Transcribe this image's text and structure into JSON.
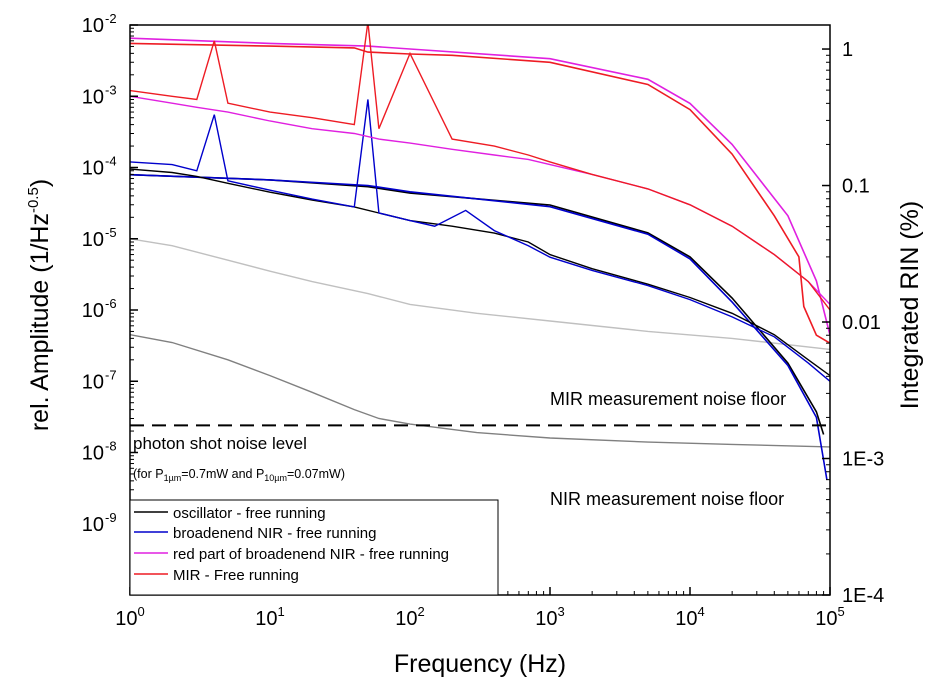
{
  "chart_data": {
    "type": "line",
    "xlabel": "Frequency (Hz)",
    "ylabel": "rel. Amplitude (1/Hz^-0.5)",
    "ylabel_parts": {
      "main": "rel. Amplitude (1/Hz",
      "sup": "-0.5",
      "tail": ")"
    },
    "y2label": "Integrated RIN (%)",
    "x_scale": "log",
    "y_scale": "log",
    "xlim": [
      1,
      100000
    ],
    "ylim": [
      1e-10,
      0.01
    ],
    "y2lim": [
      0.0001,
      1.5
    ],
    "x_ticks": [
      {
        "value": 1,
        "base": "10",
        "exp": "0"
      },
      {
        "value": 10,
        "base": "10",
        "exp": "1"
      },
      {
        "value": 100,
        "base": "10",
        "exp": "2"
      },
      {
        "value": 1000,
        "base": "10",
        "exp": "3"
      },
      {
        "value": 10000,
        "base": "10",
        "exp": "4"
      },
      {
        "value": 100000,
        "base": "10",
        "exp": "5"
      }
    ],
    "y_ticks": [
      {
        "value": 0.01,
        "base": "10",
        "exp": "-2"
      },
      {
        "value": 0.001,
        "base": "10",
        "exp": "-3"
      },
      {
        "value": 0.0001,
        "base": "10",
        "exp": "-4"
      },
      {
        "value": 1e-05,
        "base": "10",
        "exp": "-5"
      },
      {
        "value": 1e-06,
        "base": "10",
        "exp": "-6"
      },
      {
        "value": 1e-07,
        "base": "10",
        "exp": "-7"
      },
      {
        "value": 1e-08,
        "base": "10",
        "exp": "-8"
      },
      {
        "value": 1e-09,
        "base": "10",
        "exp": "-9"
      }
    ],
    "y2_ticks": [
      {
        "value": 1,
        "label": "1"
      },
      {
        "value": 0.1,
        "label": "0.1"
      },
      {
        "value": 0.01,
        "label": "0.01"
      },
      {
        "value": 0.001,
        "label": "1E-3"
      },
      {
        "value": 0.0001,
        "label": "1E-4"
      }
    ],
    "series": [
      {
        "name": "oscillator - free running",
        "color": "#000000",
        "spectrum": [
          [
            1,
            9.5e-05
          ],
          [
            2,
            8.5e-05
          ],
          [
            3,
            7.5e-05
          ],
          [
            5,
            6e-05
          ],
          [
            10,
            4.5e-05
          ],
          [
            20,
            3.5e-05
          ],
          [
            40,
            2.8e-05
          ],
          [
            60,
            2.3e-05
          ],
          [
            100,
            1.8e-05
          ],
          [
            200,
            1.5e-05
          ],
          [
            400,
            1.2e-05
          ],
          [
            700,
            9e-06
          ],
          [
            1000,
            6e-06
          ],
          [
            2000,
            3.8e-06
          ],
          [
            5000,
            2.3e-06
          ],
          [
            10000,
            1.5e-06
          ],
          [
            20000,
            9e-07
          ],
          [
            40000,
            4.5e-07
          ],
          [
            70000,
            2e-07
          ],
          [
            100000,
            1.2e-07
          ]
        ],
        "integrated": [
          [
            1,
            0.12
          ],
          [
            10,
            0.11
          ],
          [
            50,
            0.098
          ],
          [
            100,
            0.088
          ],
          [
            1000,
            0.072
          ],
          [
            5000,
            0.045
          ],
          [
            10000,
            0.03
          ],
          [
            20000,
            0.015
          ],
          [
            50000,
            0.005
          ],
          [
            80000,
            0.0022
          ],
          [
            90000,
            0.0015
          ]
        ]
      },
      {
        "name": "broadenend NIR - free running",
        "color": "#0000cc",
        "spectrum": [
          [
            1,
            0.00012
          ],
          [
            2,
            0.00011
          ],
          [
            3,
            9e-05
          ],
          [
            4,
            0.00055
          ],
          [
            5,
            6.5e-05
          ],
          [
            10,
            4.8e-05
          ],
          [
            20,
            3.6e-05
          ],
          [
            40,
            2.8e-05
          ],
          [
            50,
            0.0009
          ],
          [
            60,
            2.3e-05
          ],
          [
            100,
            1.8e-05
          ],
          [
            150,
            1.5e-05
          ],
          [
            250,
            2.5e-05
          ],
          [
            400,
            1.3e-05
          ],
          [
            700,
            8e-06
          ],
          [
            1000,
            5.5e-06
          ],
          [
            2000,
            3.6e-06
          ],
          [
            5000,
            2.2e-06
          ],
          [
            10000,
            1.4e-06
          ],
          [
            20000,
            8e-07
          ],
          [
            40000,
            4.2e-07
          ],
          [
            70000,
            1.8e-07
          ],
          [
            100000,
            1e-07
          ]
        ],
        "integrated": [
          [
            1,
            0.12
          ],
          [
            10,
            0.11
          ],
          [
            50,
            0.1
          ],
          [
            100,
            0.09
          ],
          [
            1000,
            0.07
          ],
          [
            5000,
            0.044
          ],
          [
            10000,
            0.029
          ],
          [
            20000,
            0.014
          ],
          [
            50000,
            0.0048
          ],
          [
            80000,
            0.002
          ],
          [
            95000,
            0.0007
          ]
        ]
      },
      {
        "name": "red part of broadenend NIR - free running",
        "color": "#e020e0",
        "spectrum": [
          [
            1,
            0.001
          ],
          [
            2,
            0.0008
          ],
          [
            3,
            0.0007
          ],
          [
            5,
            0.0006
          ],
          [
            10,
            0.00045
          ],
          [
            20,
            0.00035
          ],
          [
            40,
            0.0003
          ],
          [
            60,
            0.00025
          ],
          [
            100,
            0.00022
          ],
          [
            200,
            0.00018
          ],
          [
            400,
            0.00015
          ],
          [
            700,
            0.00013
          ],
          [
            1000,
            0.00011
          ],
          [
            2000,
            8e-05
          ],
          [
            5000,
            5e-05
          ],
          [
            10000,
            3e-05
          ],
          [
            20000,
            1.5e-05
          ],
          [
            40000,
            6e-06
          ],
          [
            70000,
            2.5e-06
          ],
          [
            100000,
            1.2e-06
          ]
        ],
        "integrated": [
          [
            1,
            1.2
          ],
          [
            10,
            1.1
          ],
          [
            50,
            1.05
          ],
          [
            100,
            1.0
          ],
          [
            1000,
            0.85
          ],
          [
            5000,
            0.6
          ],
          [
            10000,
            0.4
          ],
          [
            20000,
            0.2
          ],
          [
            50000,
            0.06
          ],
          [
            80000,
            0.02
          ],
          [
            100000,
            0.008
          ]
        ]
      },
      {
        "name": "MIR - Free running",
        "color": "#ee1c24",
        "spectrum": [
          [
            1,
            0.0012
          ],
          [
            2,
            0.001
          ],
          [
            3,
            0.0009
          ],
          [
            4,
            0.006
          ],
          [
            5,
            0.0008
          ],
          [
            10,
            0.0006
          ],
          [
            20,
            0.0005
          ],
          [
            40,
            0.0004
          ],
          [
            50,
            0.011
          ],
          [
            60,
            0.00035
          ],
          [
            100,
            0.004
          ],
          [
            200,
            0.00025
          ],
          [
            400,
            0.0002
          ],
          [
            700,
            0.00015
          ],
          [
            1000,
            0.00012
          ],
          [
            2000,
            8e-05
          ],
          [
            5000,
            5e-05
          ],
          [
            10000,
            3e-05
          ],
          [
            20000,
            1.5e-05
          ],
          [
            40000,
            6e-06
          ],
          [
            70000,
            2.5e-06
          ],
          [
            100000,
            1e-06
          ]
        ],
        "integrated": [
          [
            1,
            1.1
          ],
          [
            10,
            1.05
          ],
          [
            40,
            1.02
          ],
          [
            50,
            0.95
          ],
          [
            100,
            0.92
          ],
          [
            200,
            0.9
          ],
          [
            1000,
            0.8
          ],
          [
            5000,
            0.55
          ],
          [
            10000,
            0.36
          ],
          [
            20000,
            0.17
          ],
          [
            40000,
            0.06
          ],
          [
            60000,
            0.03
          ],
          [
            65000,
            0.013
          ],
          [
            80000,
            0.008
          ],
          [
            100000,
            0.007
          ]
        ]
      }
    ],
    "noise_floors": [
      {
        "name": "MIR measurement noise floor",
        "color": "#c0c0c0",
        "spectrum": [
          [
            1,
            1e-05
          ],
          [
            2,
            8e-06
          ],
          [
            5,
            5e-06
          ],
          [
            10,
            3.5e-06
          ],
          [
            20,
            2.5e-06
          ],
          [
            50,
            1.7e-06
          ],
          [
            100,
            1.2e-06
          ],
          [
            300,
            9e-07
          ],
          [
            1000,
            7e-07
          ],
          [
            5000,
            5e-07
          ],
          [
            20000,
            4e-07
          ],
          [
            100000,
            2.8e-07
          ]
        ]
      },
      {
        "name": "NIR measurement noise floor",
        "color": "#808080",
        "spectrum": [
          [
            1,
            4.5e-07
          ],
          [
            2,
            3.5e-07
          ],
          [
            5,
            2e-07
          ],
          [
            10,
            1.2e-07
          ],
          [
            20,
            7e-08
          ],
          [
            40,
            4e-08
          ],
          [
            60,
            3e-08
          ],
          [
            100,
            2.5e-08
          ],
          [
            300,
            1.9e-08
          ],
          [
            1000,
            1.6e-08
          ],
          [
            5000,
            1.4e-08
          ],
          [
            20000,
            1.3e-08
          ],
          [
            100000,
            1.2e-08
          ]
        ]
      }
    ],
    "shot_noise_level": 2.4e-08,
    "annotations": {
      "shot_noise_label": "photon shot noise level",
      "shot_noise_condition": {
        "pre": "(for P",
        "sub1": "1µm",
        "mid": "=0.7mW and P",
        "sub2": "10µm",
        "post": "=0.07mW)"
      },
      "mir_floor_label": "MIR measurement noise floor",
      "nir_floor_label": "NIR measurement noise floor"
    },
    "legend_placement": "bottom-left",
    "grid": false
  }
}
